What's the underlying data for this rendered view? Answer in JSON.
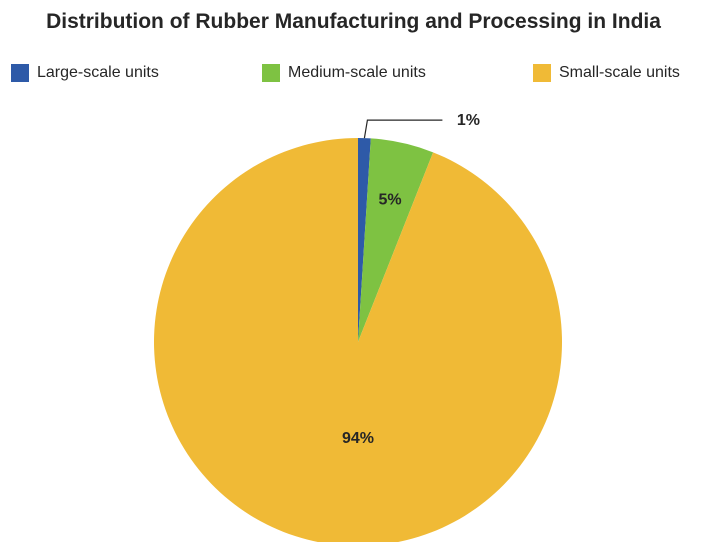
{
  "chart_data": {
    "type": "pie",
    "title": "Distribution of Rubber Manufacturing and Processing in India",
    "categories": [
      "Large-scale units",
      "Medium-scale units",
      "Small-scale units"
    ],
    "values": [
      1,
      5,
      94
    ],
    "value_labels": [
      "1%",
      "5%",
      "94%"
    ],
    "colors": [
      "#2e5aa8",
      "#7ec242",
      "#f0ba36"
    ],
    "legend_position": "top"
  }
}
